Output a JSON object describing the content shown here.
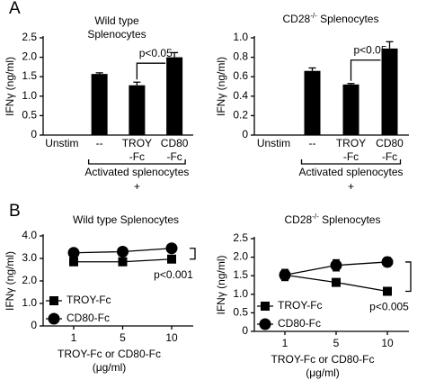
{
  "chart_data": [
    {
      "type": "bar",
      "panel_label": "A",
      "title": "Wild type\nSplenocytes",
      "y_label": "IFNγ (ng/ml)",
      "categories": [
        "Unstim",
        "--",
        "TROY\n-Fc",
        "CD80\n-Fc"
      ],
      "values": [
        0,
        1.57,
        1.28,
        2.0
      ],
      "errors": [
        0,
        0.03,
        0.08,
        0.12
      ],
      "color": "#000000",
      "ylim": [
        0,
        2.5
      ],
      "yticks": [
        0,
        0.5,
        {
          "value": 1,
          "label": "1.0"
        },
        1.5,
        {
          "value": 2,
          "label": "2.0"
        },
        2.5
      ],
      "annotation": "p<0.05",
      "group_label": "Activated splenocytes",
      "group_sign": "+"
    },
    {
      "type": "bar",
      "title": "CD28-/- Splenocytes",
      "y_label": "IFNγ (ng/ml)",
      "categories": [
        "Unstim",
        "--",
        "TROY\n-Fc",
        "CD80\n-Fc"
      ],
      "values": [
        0,
        0.66,
        0.52,
        0.89
      ],
      "errors": [
        0,
        0.03,
        0.01,
        0.07
      ],
      "color": "#000000",
      "ylim": [
        0,
        1
      ],
      "yticks": [
        0,
        0.2,
        0.4,
        0.6,
        0.8,
        {
          "value": 1,
          "label": "1.0"
        }
      ],
      "annotation": "p<0.05",
      "group_label": "Activated  splenocytes",
      "group_sign": "+"
    },
    {
      "type": "line",
      "panel_label": "B",
      "title": "Wild type Splenocytes",
      "y_label": "IFNγ (ng/ml)",
      "x_label": "TROY-Fc or CD80-Fc\n(μg/ml)",
      "categories": [
        "1",
        "5",
        "10"
      ],
      "series": [
        {
          "name": "TROY-Fc",
          "marker": "square",
          "color": "#000000",
          "values": [
            2.85,
            2.85,
            2.97
          ],
          "errors": [
            0.06,
            0.05,
            0.1
          ]
        },
        {
          "name": "CD80-Fc",
          "marker": "circle",
          "color": "#000000",
          "values": [
            3.25,
            3.3,
            3.45
          ],
          "errors": [
            0.05,
            0.06,
            0.08
          ]
        }
      ],
      "ylim": [
        0,
        4
      ],
      "yticks": [
        0,
        {
          "value": 1,
          "label": "1.0"
        },
        {
          "value": 2,
          "label": "2.0"
        },
        {
          "value": 3,
          "label": "3.0"
        },
        {
          "value": 4,
          "label": "4.0"
        }
      ],
      "annotation": "p<0.001",
      "legend": "lower left"
    },
    {
      "type": "line",
      "title": "CD28-/- Splenocytes",
      "y_label": "IFNγ (ng/ml)",
      "x_label": "TROY-Fc or CD80-Fc\n(μg/ml)",
      "categories": [
        "1",
        "5",
        "10"
      ],
      "series": [
        {
          "name": "TROY-Fc",
          "marker": "square",
          "color": "#000000",
          "values": [
            1.52,
            1.32,
            1.08
          ],
          "errors": [
            0.15,
            0.05,
            0.05
          ]
        },
        {
          "name": "CD80-Fc",
          "marker": "circle",
          "color": "#000000",
          "values": [
            1.52,
            1.78,
            1.87
          ],
          "errors": [
            0.1,
            0.15,
            0.12
          ]
        }
      ],
      "ylim": [
        0,
        2.5
      ],
      "yticks": [
        0,
        0.5,
        {
          "value": 1,
          "label": "1.0"
        },
        1.5,
        {
          "value": 2,
          "label": "2.0"
        },
        2.5
      ],
      "annotation": "p<0.005",
      "legend": "lower left"
    }
  ]
}
